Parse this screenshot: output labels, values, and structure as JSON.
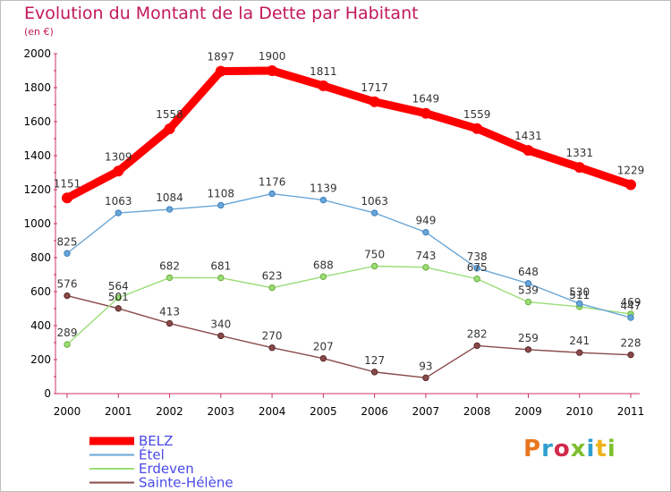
{
  "chart_data": {
    "type": "line",
    "title": "Evolution du Montant de la Dette par Habitant",
    "subtitle": "(en €)",
    "x": [
      "2000",
      "2001",
      "2002",
      "2003",
      "2004",
      "2005",
      "2006",
      "2007",
      "2008",
      "2009",
      "2010",
      "2011"
    ],
    "ylim": [
      0,
      2000
    ],
    "yticks": [
      0,
      200,
      400,
      600,
      800,
      1000,
      1200,
      1400,
      1600,
      1800,
      2000
    ],
    "grid": false,
    "legend_position": "bottom-left",
    "series": [
      {
        "name": "BELZ",
        "color": "#ff0000",
        "values": [
          1151,
          1309,
          1558,
          1897,
          1900,
          1811,
          1717,
          1649,
          1559,
          1431,
          1331,
          1229
        ]
      },
      {
        "name": "Étel",
        "color": "#6aa6d6",
        "values": [
          825,
          1063,
          1084,
          1108,
          1176,
          1139,
          1063,
          949,
          738,
          648,
          530,
          447
        ]
      },
      {
        "name": "Erdeven",
        "color": "#99dd77",
        "values": [
          289,
          564,
          682,
          681,
          623,
          688,
          750,
          743,
          675,
          539,
          511,
          469
        ]
      },
      {
        "name": "Sainte-Hélène",
        "color": "#8a4a4a",
        "values": [
          576,
          501,
          413,
          340,
          270,
          207,
          127,
          93,
          282,
          259,
          241,
          228
        ]
      }
    ]
  },
  "logo": {
    "text": "Proxiti",
    "colors": [
      "#e8761e",
      "#2f9fd0",
      "#d22a4a",
      "#7fbf2f",
      "#2f9fd0",
      "#f0b21a",
      "#7fbf2f"
    ]
  }
}
